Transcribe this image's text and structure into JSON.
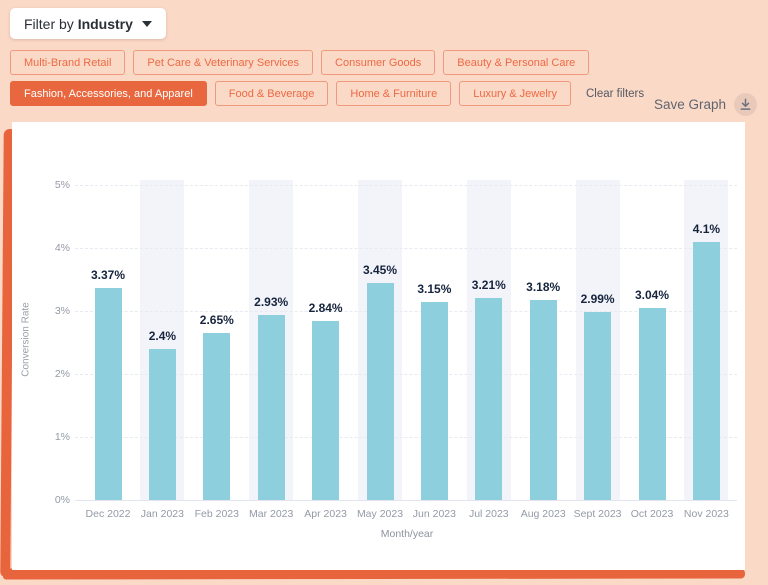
{
  "filter_dropdown": {
    "prefix": "Filter by",
    "value": "Industry"
  },
  "filters": {
    "row1": [
      {
        "label": "Multi-Brand Retail",
        "selected": false
      },
      {
        "label": "Pet Care & Veterinary Services",
        "selected": false
      },
      {
        "label": "Consumer Goods",
        "selected": false
      },
      {
        "label": "Beauty & Personal Care",
        "selected": false
      }
    ],
    "row2": [
      {
        "label": "Fashion, Accessories, and Apparel",
        "selected": true
      },
      {
        "label": "Food & Beverage",
        "selected": false
      },
      {
        "label": "Home & Furniture",
        "selected": false
      },
      {
        "label": "Luxury & Jewelry",
        "selected": false
      }
    ],
    "clear_label": "Clear filters"
  },
  "save_graph": {
    "label": "Save Graph",
    "icon": "download-icon"
  },
  "chart_data": {
    "type": "bar",
    "title": "",
    "categories": [
      "Dec 2022",
      "Jan 2023",
      "Feb 2023",
      "Mar 2023",
      "Apr 2023",
      "May 2023",
      "Jun 2023",
      "Jul 2023",
      "Aug 2023",
      "Sept 2023",
      "Oct 2023",
      "Nov 2023"
    ],
    "values": [
      3.37,
      2.4,
      2.65,
      2.93,
      2.84,
      3.45,
      3.15,
      3.21,
      3.18,
      2.99,
      3.04,
      4.1
    ],
    "value_labels": [
      "3.37%",
      "2.4%",
      "2.65%",
      "2.93%",
      "2.84%",
      "3.45%",
      "3.15%",
      "3.21%",
      "3.18%",
      "2.99%",
      "3.04%",
      "4.1%"
    ],
    "xlabel": "Month/year",
    "ylabel": "Conversion Rate",
    "ylim": [
      0,
      5
    ],
    "yticks": [
      "0%",
      "1%",
      "2%",
      "3%",
      "4%",
      "5%"
    ],
    "grid": "horizontal-dashed",
    "legend": "none",
    "bar_color": "#8dcfdd",
    "band_color": "#f3f4fa",
    "band_behind": "odd-columns"
  },
  "colors": {
    "page_background": "#fbd9c7",
    "accent_orange": "#e8643c",
    "pill_text": "#ec6a44",
    "card_background": "#ffffff",
    "bar_blue": "#8dcfdd",
    "value_label": "#16243d",
    "tick_gray": "#949aa5"
  }
}
